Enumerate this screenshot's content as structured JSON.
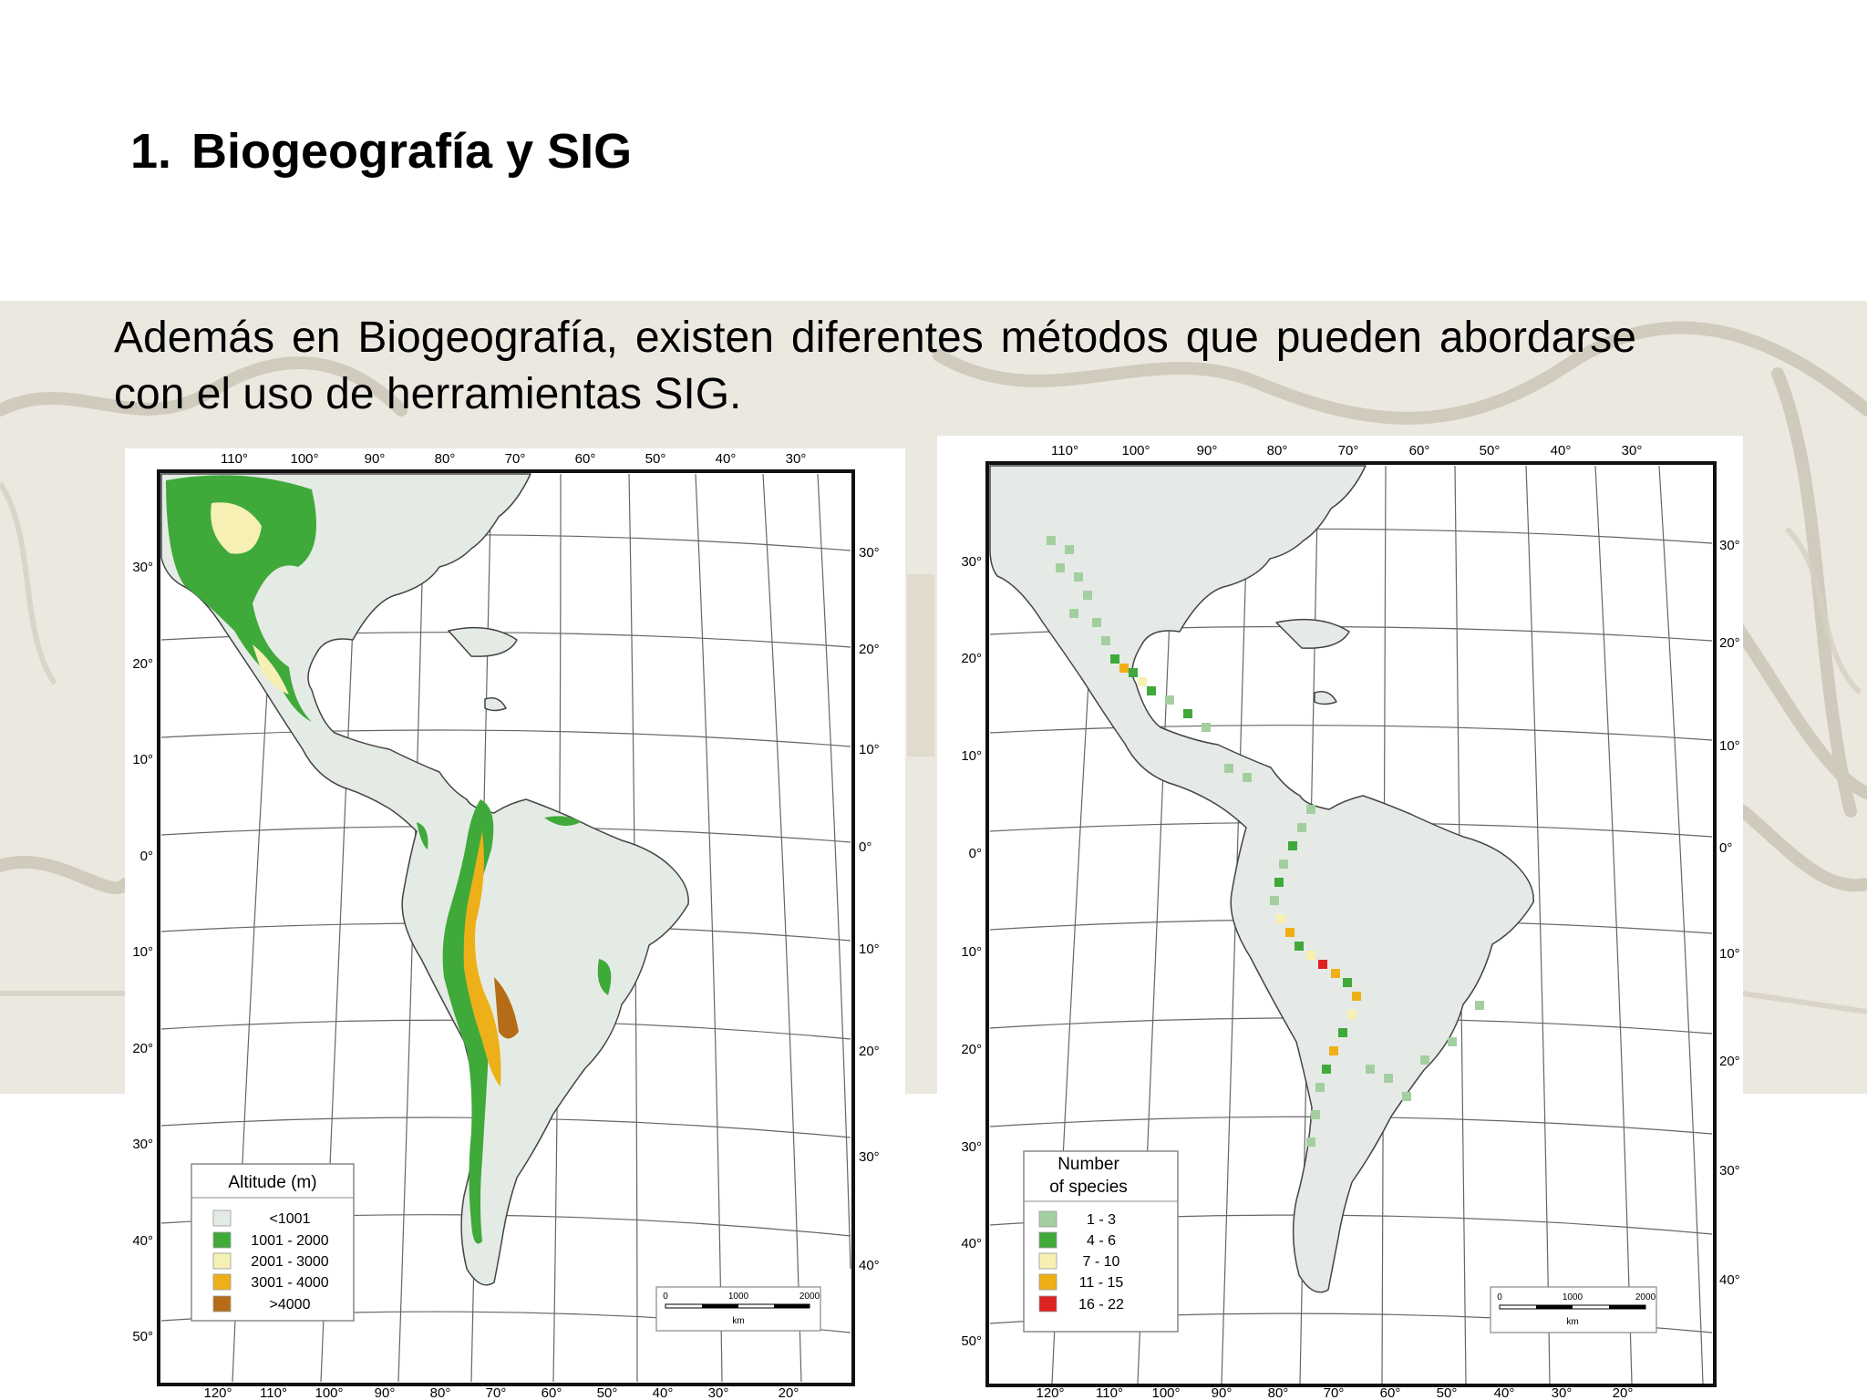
{
  "slide": {
    "title_number": "1.",
    "title": "Biogeografía y SIG",
    "intro": "Además en Biogeografía, existen diferentes métodos que pueden abordarse con el uso de herramientas SIG."
  },
  "maps": [
    {
      "id": "altitude",
      "top_longitudes": [
        "110°",
        "100°",
        "90°",
        "80°",
        "70°",
        "60°",
        "50°",
        "40°",
        "30°"
      ],
      "bottom_longitudes": [
        "120°",
        "110°",
        "100°",
        "90°",
        "80°",
        "70°",
        "60°",
        "50°",
        "40°",
        "30°",
        "20°"
      ],
      "left_latitudes": [
        "30°",
        "20°",
        "10°",
        "0°",
        "10°",
        "20°",
        "30°",
        "40°",
        "50°"
      ],
      "right_latitudes": [
        "30°",
        "20°",
        "10°",
        "0°",
        "10°",
        "20°",
        "30°",
        "40°"
      ],
      "legend": {
        "title_lines": [
          "Altitude (m)"
        ],
        "items": [
          {
            "label": "<1001",
            "color": "#e4ebe5"
          },
          {
            "label": "1001 - 2000",
            "color": "#3fa93a"
          },
          {
            "label": "2001 - 3000",
            "color": "#f6f0b4"
          },
          {
            "label": "3001 - 4000",
            "color": "#eeb019"
          },
          {
            "label": ">4000",
            "color": "#b66c17"
          }
        ]
      },
      "scale_bar": {
        "ticks": [
          "0",
          "1000",
          "2000"
        ],
        "unit": "km"
      }
    },
    {
      "id": "species",
      "top_longitudes": [
        "110°",
        "100°",
        "90°",
        "80°",
        "70°",
        "60°",
        "50°",
        "40°",
        "30°"
      ],
      "bottom_longitudes": [
        "120°",
        "110°",
        "100°",
        "90°",
        "80°",
        "70°",
        "60°",
        "50°",
        "40°",
        "30°",
        "20°"
      ],
      "left_latitudes": [
        "30°",
        "20°",
        "10°",
        "0°",
        "10°",
        "20°",
        "30°",
        "40°",
        "50°"
      ],
      "right_latitudes": [
        "30°",
        "20°",
        "10°",
        "0°",
        "10°",
        "20°",
        "30°",
        "40°"
      ],
      "legend": {
        "title_lines": [
          "Number",
          "of species"
        ],
        "items": [
          {
            "label": "1 - 3",
            "color": "#a3cfa0"
          },
          {
            "label": "4 - 6",
            "color": "#3fa93a"
          },
          {
            "label": "7 - 10",
            "color": "#f8f0b2"
          },
          {
            "label": "11 - 15",
            "color": "#efaf17"
          },
          {
            "label": "16 - 22",
            "color": "#dd2222"
          }
        ]
      },
      "scale_bar": {
        "ticks": [
          "0",
          "1000",
          "2000"
        ],
        "unit": "km"
      }
    }
  ]
}
